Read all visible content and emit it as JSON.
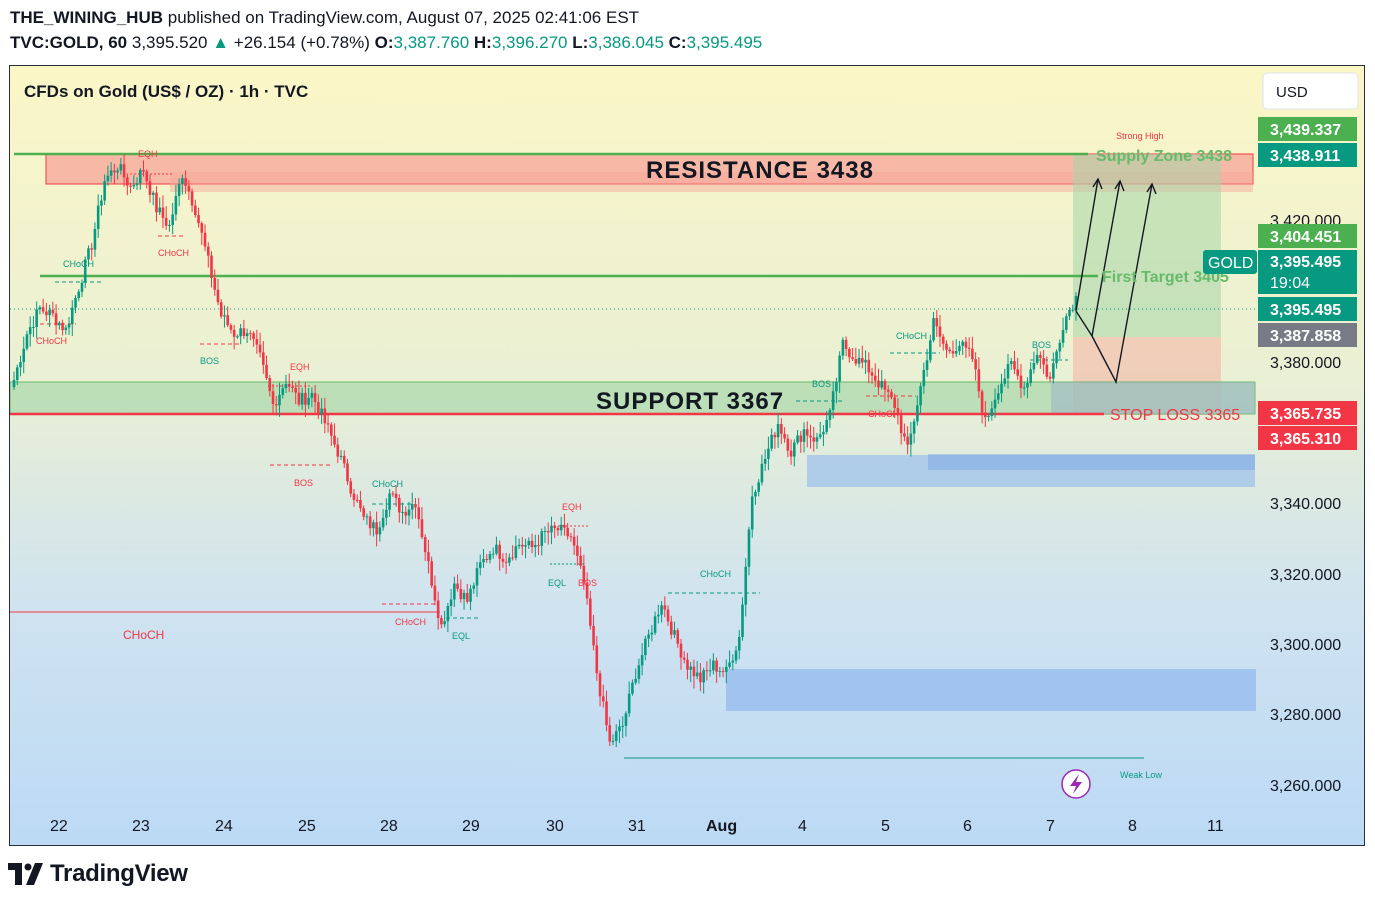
{
  "header": {
    "publisher": "THE_WINING_HUB",
    "published_text": "published on TradingView.com, August 07, 2025 02:41:06 EST",
    "symbol": "TVC:GOLD, 60",
    "last_price": "3,395.520",
    "change_arrow": "▲",
    "change": "+26.154 (+0.78%)",
    "o_label": "O:",
    "o_value": "3,387.760",
    "h_label": "H:",
    "h_value": "3,396.270",
    "l_label": "L:",
    "l_value": "3,386.045",
    "c_label": "C:",
    "c_value": "3,395.495"
  },
  "chart": {
    "title": "CFDs on Gold (US$ / OZ) · 1h · TVC",
    "currency_button": "USD",
    "annotations": {
      "resistance": "RESISTANCE 3438",
      "support": "SUPPORT 3367",
      "supply_zone": "Supply Zone 3438",
      "strong_high": "Strong High",
      "first_target": "First Target 3405",
      "stop_loss": "STOP LOSS 3365",
      "weak_low": "Weak Low",
      "eqh_1": "EQH",
      "eqh_2": "EQH",
      "eqh_3": "EQH",
      "eql_1": "EQL",
      "eql_2": "EQL",
      "bos_1": "BOS",
      "bos_2": "BOS",
      "bos_3": "BOS",
      "bos_4": "BOS",
      "bos_5": "BOS",
      "choch_1": "CHoCH",
      "choch_2": "CHoCH",
      "choch_3": "CHoCH",
      "choch_4": "CHoCH",
      "choch_5": "CHoCH",
      "choch_6": "CHoCH",
      "choch_7": "CHoCH",
      "choch_8": "CHoCH",
      "choch_9": "CHoCH"
    },
    "price_tags": {
      "t1": "3,439.337",
      "t2": "3,438.911",
      "t3": "3,404.451",
      "gold_label": "GOLD",
      "t4": "3,395.495",
      "countdown": "19:04",
      "t5": "3,395.495",
      "t6": "3,387.858",
      "t7": "3,365.735",
      "t8": "3,365.310"
    },
    "colors": {
      "bull": "#089981",
      "bear": "#f23645",
      "green_line": "#4caf50",
      "red_line": "#f23645",
      "resistance_fill": "#f7a59a",
      "support_fill": "#a5d6a7",
      "demand_fill": "#90b8ee"
    }
  },
  "chart_data": {
    "type": "candlestick",
    "title": "CFDs on Gold (US$ / OZ) · 1h · TVC",
    "x_tick_labels": [
      "22",
      "23",
      "24",
      "25",
      "28",
      "29",
      "30",
      "31",
      "Aug",
      "4",
      "5",
      "6",
      "7",
      "8",
      "11"
    ],
    "y_tick_labels": [
      "3,420.000",
      "3,380.000",
      "3,340.000",
      "3,320.000",
      "3,300.000",
      "3,280.000",
      "3,260.000"
    ],
    "ylim": [
      3252,
      3458
    ],
    "close_path": [
      {
        "x": "21 Jul",
        "y": 3372
      },
      {
        "x": "21 Jul",
        "y": 3385
      },
      {
        "x": "22 Jul",
        "y": 3392
      },
      {
        "x": "22 Jul",
        "y": 3390
      },
      {
        "x": "22 Jul",
        "y": 3386
      },
      {
        "x": "22 Jul",
        "y": 3398
      },
      {
        "x": "22 Jul",
        "y": 3410
      },
      {
        "x": "22 Jul",
        "y": 3428
      },
      {
        "x": "23 Jul",
        "y": 3432
      },
      {
        "x": "23 Jul",
        "y": 3426
      },
      {
        "x": "23 Jul",
        "y": 3431
      },
      {
        "x": "23 Jul",
        "y": 3420
      },
      {
        "x": "23 Jul",
        "y": 3415
      },
      {
        "x": "23 Jul",
        "y": 3430
      },
      {
        "x": "24 Jul",
        "y": 3420
      },
      {
        "x": "24 Jul",
        "y": 3405
      },
      {
        "x": "24 Jul",
        "y": 3390
      },
      {
        "x": "24 Jul",
        "y": 3385
      },
      {
        "x": "24 Jul",
        "y": 3386
      },
      {
        "x": "24 Jul",
        "y": 3378
      },
      {
        "x": "25 Jul",
        "y": 3365
      },
      {
        "x": "25 Jul",
        "y": 3372
      },
      {
        "x": "25 Jul",
        "y": 3366
      },
      {
        "x": "25 Jul",
        "y": 3368
      },
      {
        "x": "25 Jul",
        "y": 3360
      },
      {
        "x": "25 Jul",
        "y": 3352
      },
      {
        "x": "28 Jul",
        "y": 3342
      },
      {
        "x": "28 Jul",
        "y": 3333
      },
      {
        "x": "28 Jul",
        "y": 3330
      },
      {
        "x": "28 Jul",
        "y": 3340
      },
      {
        "x": "28 Jul",
        "y": 3335
      },
      {
        "x": "28 Jul",
        "y": 3338
      },
      {
        "x": "28 Jul",
        "y": 3320
      },
      {
        "x": "29 Jul",
        "y": 3303
      },
      {
        "x": "29 Jul",
        "y": 3315
      },
      {
        "x": "29 Jul",
        "y": 3310
      },
      {
        "x": "29 Jul",
        "y": 3320
      },
      {
        "x": "29 Jul",
        "y": 3325
      },
      {
        "x": "29 Jul",
        "y": 3322
      },
      {
        "x": "30 Jul",
        "y": 3326
      },
      {
        "x": "30 Jul",
        "y": 3325
      },
      {
        "x": "30 Jul",
        "y": 3329
      },
      {
        "x": "30 Jul",
        "y": 3330
      },
      {
        "x": "30 Jul",
        "y": 3328
      },
      {
        "x": "30 Jul",
        "y": 3315
      },
      {
        "x": "31 Jul",
        "y": 3290
      },
      {
        "x": "31 Jul",
        "y": 3270
      },
      {
        "x": "31 Jul",
        "y": 3275
      },
      {
        "x": "31 Jul",
        "y": 3290
      },
      {
        "x": "31 Jul",
        "y": 3300
      },
      {
        "x": "31 Jul",
        "y": 3310
      },
      {
        "x": "31 Jul",
        "y": 3300
      },
      {
        "x": "1 Aug",
        "y": 3292
      },
      {
        "x": "1 Aug",
        "y": 3288
      },
      {
        "x": "1 Aug",
        "y": 3292
      },
      {
        "x": "1 Aug",
        "y": 3290
      },
      {
        "x": "1 Aug",
        "y": 3300
      },
      {
        "x": "1 Aug",
        "y": 3340
      },
      {
        "x": "1 Aug",
        "y": 3350
      },
      {
        "x": "4 Aug",
        "y": 3360
      },
      {
        "x": "4 Aug",
        "y": 3352
      },
      {
        "x": "4 Aug",
        "y": 3358
      },
      {
        "x": "4 Aug",
        "y": 3355
      },
      {
        "x": "4 Aug",
        "y": 3362
      },
      {
        "x": "4 Aug",
        "y": 3382
      },
      {
        "x": "5 Aug",
        "y": 3378
      },
      {
        "x": "5 Aug",
        "y": 3375
      },
      {
        "x": "5 Aug",
        "y": 3370
      },
      {
        "x": "5 Aug",
        "y": 3365
      },
      {
        "x": "5 Aug",
        "y": 3352
      },
      {
        "x": "5 Aug",
        "y": 3370
      },
      {
        "x": "6 Aug",
        "y": 3388
      },
      {
        "x": "6 Aug",
        "y": 3380
      },
      {
        "x": "6 Aug",
        "y": 3382
      },
      {
        "x": "6 Aug",
        "y": 3378
      },
      {
        "x": "6 Aug",
        "y": 3360
      },
      {
        "x": "6 Aug",
        "y": 3370
      },
      {
        "x": "6 Aug",
        "y": 3376
      },
      {
        "x": "7 Aug",
        "y": 3370
      },
      {
        "x": "7 Aug",
        "y": 3380
      },
      {
        "x": "7 Aug",
        "y": 3372
      },
      {
        "x": "7 Aug",
        "y": 3388
      },
      {
        "x": "7 Aug",
        "y": 3395.5
      }
    ],
    "levels": [
      {
        "label": "RESISTANCE 3438",
        "value": 3438
      },
      {
        "label": "First Target 3405",
        "value": 3405
      },
      {
        "label": "SUPPORT 3367",
        "value": 3367
      },
      {
        "label": "STOP LOSS 3365",
        "value": 3365
      }
    ],
    "grid": false,
    "legend": "none"
  }
}
